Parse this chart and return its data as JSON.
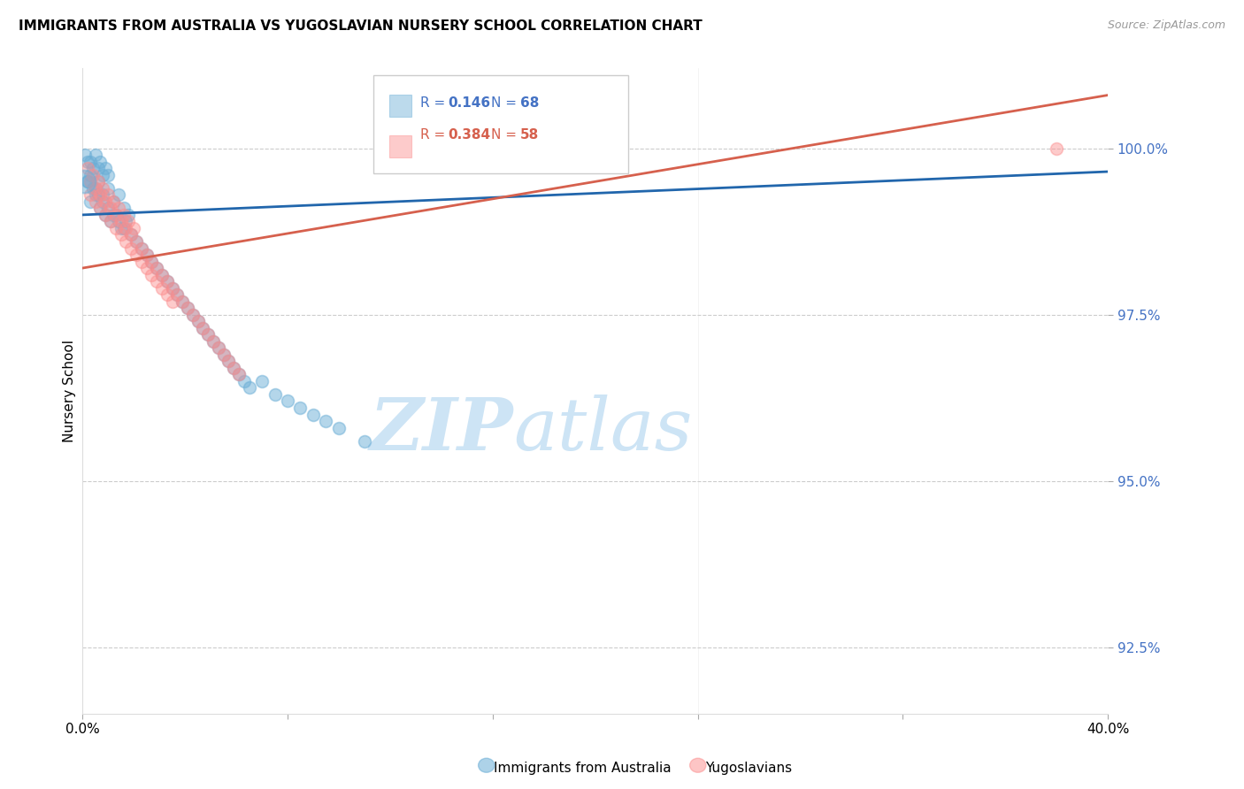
{
  "title": "IMMIGRANTS FROM AUSTRALIA VS YUGOSLAVIAN NURSERY SCHOOL CORRELATION CHART",
  "source": "Source: ZipAtlas.com",
  "ylabel": "Nursery School",
  "yticks": [
    92.5,
    95.0,
    97.5,
    100.0
  ],
  "ytick_labels": [
    "92.5%",
    "95.0%",
    "97.5%",
    "100.0%"
  ],
  "legend_blue_r": "0.146",
  "legend_blue_n": "68",
  "legend_pink_r": "0.384",
  "legend_pink_n": "58",
  "legend_label_blue": "Immigrants from Australia",
  "legend_label_pink": "Yugoslavians",
  "blue_color": "#6baed6",
  "pink_color": "#fc8d8d",
  "trendline_blue": "#2166ac",
  "trendline_pink": "#d6604d",
  "watermark_zip": "ZIP",
  "watermark_atlas": "atlas",
  "watermark_color": "#cde4f5",
  "xlim": [
    0,
    40
  ],
  "ylim": [
    91.5,
    101.2
  ],
  "blue_x": [
    0.1,
    0.2,
    0.3,
    0.4,
    0.5,
    0.6,
    0.7,
    0.8,
    0.9,
    1.0,
    0.2,
    0.3,
    0.5,
    0.6,
    0.8,
    1.0,
    1.2,
    1.4,
    1.6,
    1.8,
    0.3,
    0.5,
    0.7,
    0.9,
    1.1,
    1.3,
    1.5,
    1.7,
    1.9,
    2.1,
    2.3,
    2.5,
    2.7,
    2.9,
    3.1,
    3.3,
    3.5,
    3.7,
    3.9,
    4.1,
    4.3,
    4.5,
    4.7,
    4.9,
    5.1,
    5.3,
    5.5,
    5.7,
    5.9,
    6.1,
    6.3,
    6.5,
    7.0,
    7.5,
    8.0,
    8.5,
    9.0,
    9.5,
    10.0,
    11.0,
    0.2,
    0.4,
    0.6,
    0.8,
    1.0,
    1.2,
    1.4,
    1.6
  ],
  "blue_y": [
    99.9,
    99.8,
    99.8,
    99.7,
    99.9,
    99.7,
    99.8,
    99.6,
    99.7,
    99.6,
    99.5,
    99.6,
    99.4,
    99.5,
    99.3,
    99.4,
    99.2,
    99.3,
    99.1,
    99.0,
    99.2,
    99.3,
    99.1,
    99.0,
    98.9,
    99.0,
    98.8,
    98.9,
    98.7,
    98.6,
    98.5,
    98.4,
    98.3,
    98.2,
    98.1,
    98.0,
    97.9,
    97.8,
    97.7,
    97.6,
    97.5,
    97.4,
    97.3,
    97.2,
    97.1,
    97.0,
    96.9,
    96.8,
    96.7,
    96.6,
    96.5,
    96.4,
    96.5,
    96.3,
    96.2,
    96.1,
    96.0,
    95.9,
    95.8,
    95.6,
    99.5,
    99.4,
    99.3,
    99.2,
    99.1,
    99.0,
    98.9,
    98.8
  ],
  "blue_large_x": [
    0.05
  ],
  "blue_large_y": [
    99.5
  ],
  "pink_x": [
    0.2,
    0.4,
    0.6,
    0.8,
    1.0,
    1.2,
    1.4,
    1.6,
    1.8,
    2.0,
    0.3,
    0.5,
    0.7,
    0.9,
    1.1,
    1.3,
    1.5,
    1.7,
    1.9,
    2.1,
    2.3,
    2.5,
    2.7,
    2.9,
    3.1,
    3.3,
    3.5,
    3.7,
    3.9,
    4.1,
    4.3,
    4.5,
    4.7,
    4.9,
    5.1,
    5.3,
    5.5,
    5.7,
    5.9,
    6.1,
    0.3,
    0.5,
    0.7,
    0.9,
    1.1,
    1.3,
    1.5,
    1.7,
    1.9,
    2.1,
    2.3,
    2.5,
    2.7,
    2.9,
    3.1,
    3.3,
    3.5,
    38.0
  ],
  "pink_y": [
    99.7,
    99.6,
    99.5,
    99.4,
    99.3,
    99.2,
    99.1,
    99.0,
    98.9,
    98.8,
    99.5,
    99.4,
    99.3,
    99.2,
    99.1,
    99.0,
    98.9,
    98.8,
    98.7,
    98.6,
    98.5,
    98.4,
    98.3,
    98.2,
    98.1,
    98.0,
    97.9,
    97.8,
    97.7,
    97.6,
    97.5,
    97.4,
    97.3,
    97.2,
    97.1,
    97.0,
    96.9,
    96.8,
    96.7,
    96.6,
    99.3,
    99.2,
    99.1,
    99.0,
    98.9,
    98.8,
    98.7,
    98.6,
    98.5,
    98.4,
    98.3,
    98.2,
    98.1,
    98.0,
    97.9,
    97.8,
    97.7,
    100.0
  ]
}
